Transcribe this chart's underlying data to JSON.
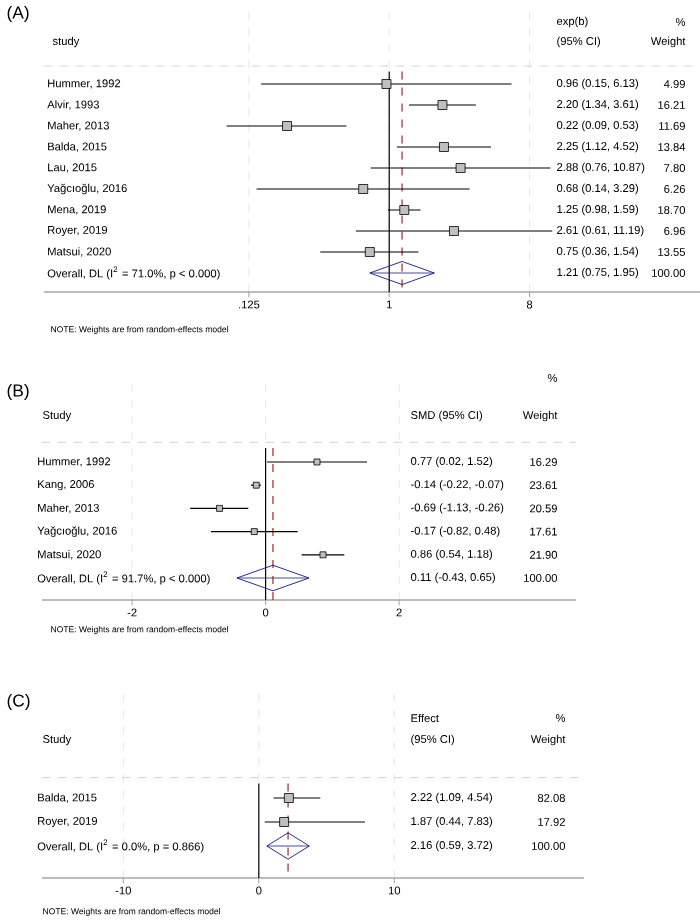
{
  "chart_data": [
    {
      "type": "scatter",
      "orientation": "horizontal",
      "title": "(A)",
      "ylabel": "study",
      "categories": [
        "Hummer, 1992",
        "Alvir, 1993",
        "Maher, 2013",
        "Balda, 2015",
        "Lau, 2015",
        "Yağcıoğlu, 2016",
        "Mena, 2019",
        "Royer, 2019",
        "Matsui, 2020",
        "Overall, DL (I$^{2}$ = 71.0%, p < 0.000)"
      ],
      "log": "x",
      "xlim": [
        0.006,
        100
      ],
      "xticks": [
        {
          "value": 0.125,
          "label": ".125"
        },
        1,
        8
      ],
      "grid": "x",
      "series": [
        {
          "marker": "square",
          "color": "#000000",
          "values": [
            0.96,
            2.2,
            0.22,
            2.25,
            2.88,
            0.68,
            1.25,
            2.61,
            0.75,
            null
          ],
          "errors": [
            [
              0.15,
              6.13
            ],
            [
              1.34,
              3.61
            ],
            [
              0.09,
              0.53
            ],
            [
              1.12,
              4.52
            ],
            [
              0.76,
              10.87
            ],
            [
              0.14,
              3.29
            ],
            [
              0.98,
              1.59
            ],
            [
              0.61,
              11.19
            ],
            [
              0.36,
              1.54
            ],
            null
          ]
        },
        {
          "marker": "diamond",
          "color": "#1c1c8c",
          "values": [
            null,
            null,
            null,
            null,
            null,
            null,
            null,
            null,
            null,
            1.21
          ],
          "errors": [
            null,
            null,
            null,
            null,
            null,
            null,
            null,
            null,
            null,
            [
              0.75,
              1.95
            ]
          ]
        }
      ],
      "ref_lines": [
        {
          "axis": "x",
          "value": 1,
          "color": "#000000",
          "line_style": "solid"
        },
        {
          "axis": "x",
          "value": 1.21,
          "color": "#b22222",
          "line_style": "dashed"
        }
      ],
      "annotations": [
        "exp(b)",
        "(95% CI)",
        "%",
        "Weight",
        "0.96 (0.15, 6.13)",
        "4.99",
        "2.20 (1.34, 3.61)",
        "16.21",
        "0.22 (0.09, 0.53)",
        "11.69",
        "2.25 (1.12, 4.52)",
        "13.84",
        "2.88 (0.76, 10.87)",
        "7.80",
        "0.68 (0.14, 3.29)",
        "6.26",
        "1.25 (0.98, 1.59)",
        "18.70",
        "2.61 (0.61, 11.19)",
        "6.96",
        "0.75 (0.36, 1.54)",
        "13.55",
        "1.21 (0.75, 1.95)",
        "100.00",
        "NOTE: Weights are from random-effects model"
      ]
    },
    {
      "type": "scatter",
      "orientation": "horizontal",
      "title": "(B)",
      "ylabel": "Study",
      "categories": [
        "Hummer, 1992",
        "Kang, 2006",
        "Maher, 2013",
        "Yağcıoğlu, 2016",
        "Matsui, 2020",
        "Overall, DL (I$^{2}$ = 91.7%, p < 0.000)"
      ],
      "xlim": [
        -3.35,
        4.65
      ],
      "xticks": [
        -2,
        0,
        2
      ],
      "grid": "x",
      "series": [
        {
          "marker": "square",
          "color": "#000000",
          "values": [
            0.77,
            -0.14,
            -0.69,
            -0.17,
            0.86,
            null
          ],
          "errors": [
            [
              0.02,
              1.52
            ],
            [
              -0.22,
              -0.07
            ],
            [
              -1.13,
              -0.26
            ],
            [
              -0.82,
              0.48
            ],
            [
              0.54,
              1.18
            ],
            null
          ]
        },
        {
          "marker": "diamond",
          "color": "#1c1c8c",
          "values": [
            null,
            null,
            null,
            null,
            null,
            0.11
          ],
          "errors": [
            null,
            null,
            null,
            null,
            null,
            [
              -0.43,
              0.65
            ]
          ]
        }
      ],
      "ref_lines": [
        {
          "axis": "x",
          "value": 0,
          "color": "#000000",
          "line_style": "solid"
        },
        {
          "axis": "x",
          "value": 0.11,
          "color": "#b22222",
          "line_style": "dashed"
        }
      ],
      "annotations": [
        "%",
        "SMD (95% CI)",
        "Weight",
        "0.77 (0.02, 1.52)",
        "16.29",
        "-0.14 (-0.22, -0.07)",
        "23.61",
        "-0.69 (-1.13, -0.26)",
        "20.59",
        "-0.17 (-0.82, 0.48)",
        "17.61",
        "0.86 (0.54, 1.18)",
        "21.90",
        "0.11 (-0.43, 0.65)",
        "100.00",
        "NOTE: Weights are from random-effects model"
      ]
    },
    {
      "type": "scatter",
      "orientation": "horizontal",
      "title": "(C)",
      "ylabel": "Study",
      "categories": [
        "Balda, 2015",
        "Royer, 2019",
        "Overall, DL (I$^{2}$ = 0.0%, p = 0.866)"
      ],
      "xlim": [
        -16,
        24
      ],
      "xticks": [
        -10,
        0,
        10
      ],
      "grid": "x",
      "series": [
        {
          "marker": "square",
          "color": "#000000",
          "values": [
            2.22,
            1.87,
            null
          ],
          "errors": [
            [
              1.09,
              4.54
            ],
            [
              0.44,
              7.83
            ],
            null
          ]
        },
        {
          "marker": "diamond",
          "color": "#1c1c8c",
          "values": [
            null,
            null,
            2.16
          ],
          "errors": [
            null,
            null,
            [
              0.59,
              3.72
            ]
          ]
        }
      ],
      "ref_lines": [
        {
          "axis": "x",
          "value": 0,
          "color": "#000000",
          "line_style": "solid"
        },
        {
          "axis": "x",
          "value": 2.16,
          "color": "#b22222",
          "line_style": "dashed"
        }
      ],
      "annotations": [
        "Effect",
        "(95% CI)",
        "%",
        "Weight",
        "2.22 (1.09, 4.54)",
        "82.08",
        "1.87 (0.44, 7.83)",
        "17.92",
        "2.16 (0.59, 3.72)",
        "100.00",
        "NOTE: Weights are from random-effects model"
      ]
    }
  ]
}
